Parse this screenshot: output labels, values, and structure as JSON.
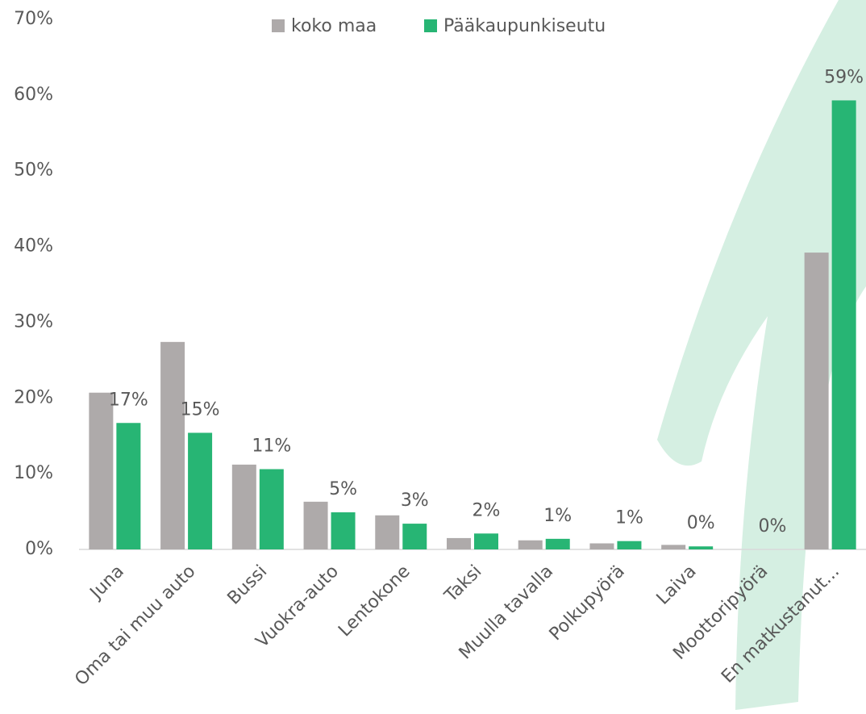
{
  "chart_data": {
    "type": "bar",
    "categories": [
      "Juna",
      "Oma tai muu auto",
      "Bussi",
      "Vuokra-auto",
      "Lentokone",
      "Taksi",
      "Muulla tavalla",
      "Polkupyörä",
      "Laiva",
      "Moottoripyörä",
      "En matkustanut..."
    ],
    "series": [
      {
        "name": "koko maa",
        "color": "#aeaaaa",
        "values": [
          20.7,
          27.4,
          11.2,
          6.3,
          4.5,
          1.5,
          1.2,
          0.8,
          0.6,
          0.0,
          39.2
        ]
      },
      {
        "name": "Pääkaupunkiseutu",
        "color": "#27b574",
        "values": [
          16.7,
          15.4,
          10.6,
          4.9,
          3.4,
          2.1,
          1.4,
          1.1,
          0.4,
          0.0,
          59.3
        ],
        "value_labels": [
          "17%",
          "15%",
          "11%",
          "5%",
          "3%",
          "2%",
          "1%",
          "1%",
          "0%",
          "0%",
          "59%"
        ]
      }
    ],
    "ylim": [
      0,
      70
    ],
    "yticks": [
      {
        "value": 0,
        "label": "0%"
      },
      {
        "value": 10,
        "label": "10%"
      },
      {
        "value": 20,
        "label": "20%"
      },
      {
        "value": 30,
        "label": "30%"
      },
      {
        "value": 40,
        "label": "40%"
      },
      {
        "value": 50,
        "label": "50%"
      },
      {
        "value": 60,
        "label": "60%"
      },
      {
        "value": 70,
        "label": "70%"
      }
    ],
    "grid": false,
    "legend": "top"
  }
}
